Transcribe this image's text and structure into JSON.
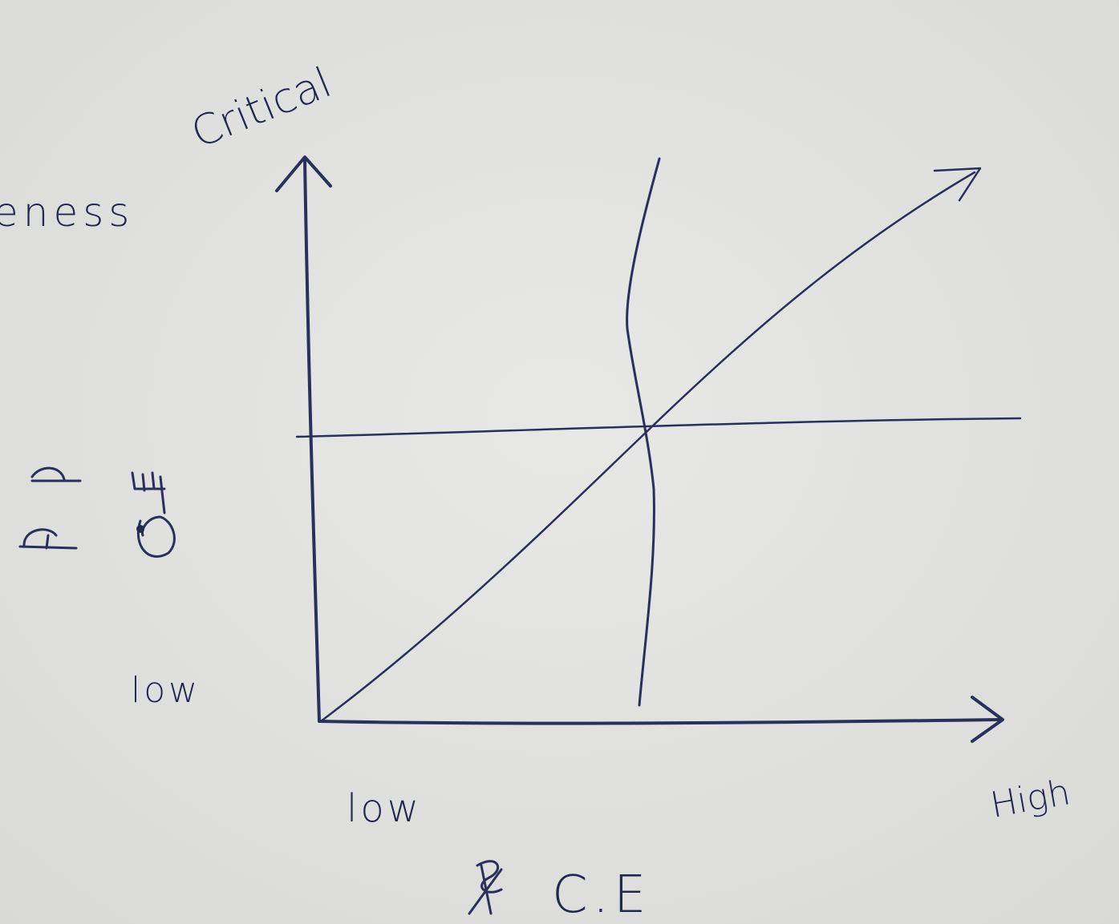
{
  "labels": {
    "y_axis_top": "Critical",
    "y_axis_name_fragment": "eness",
    "y_low": "low",
    "x_low": "low",
    "x_high": "High",
    "x_axis_name": "C.E"
  }
}
